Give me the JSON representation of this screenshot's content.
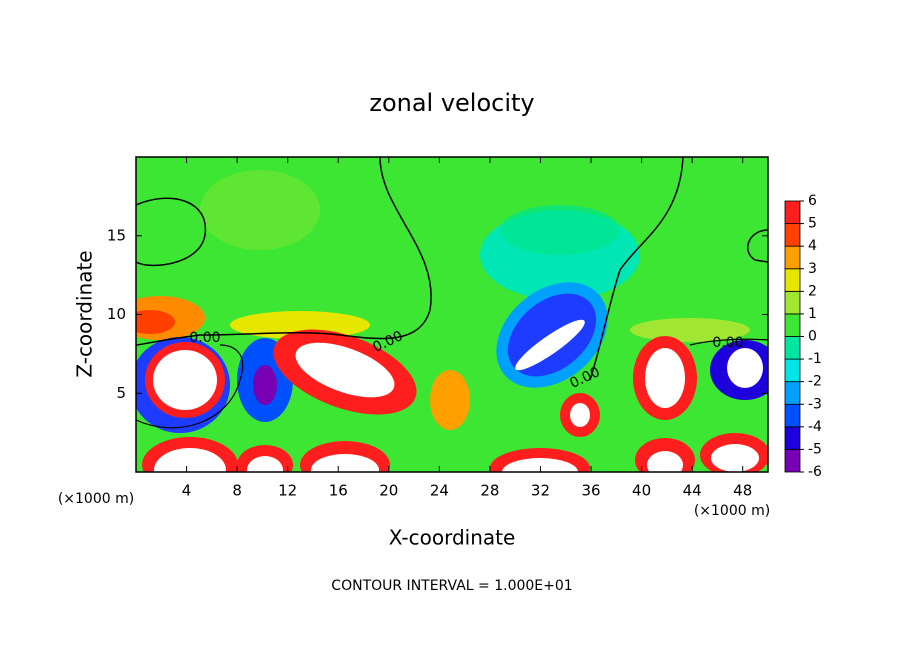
{
  "chart_data": {
    "type": "contour",
    "title": "zonal velocity",
    "x_label": "X-coordinate",
    "y_label": "Z-coordinate",
    "x_unit": "(×1000 m)",
    "y_unit": "(×1000 m)",
    "xlim": [
      0,
      50
    ],
    "ylim": [
      0,
      20
    ],
    "xticks": [
      4,
      8,
      12,
      16,
      20,
      24,
      28,
      32,
      36,
      40,
      44,
      48
    ],
    "yticks": [
      5,
      10,
      15
    ],
    "colorbar": {
      "levels": [
        -6,
        -5,
        -4,
        -3,
        -2,
        -1,
        0,
        1,
        2,
        3,
        4,
        5,
        6
      ],
      "colors": [
        "#7800b4",
        "#1e00dc",
        "#0050ff",
        "#00a0ff",
        "#00e6e6",
        "#00e6a0",
        "#3ce632",
        "#a0e632",
        "#e6e600",
        "#ffa000",
        "#ff4000",
        "#ff1e1e"
      ]
    },
    "contour_labels": [
      "0.00",
      "0.00",
      "0.00",
      "0.00"
    ],
    "footer": "CONTOUR INTERVAL = 1.000E+01"
  }
}
